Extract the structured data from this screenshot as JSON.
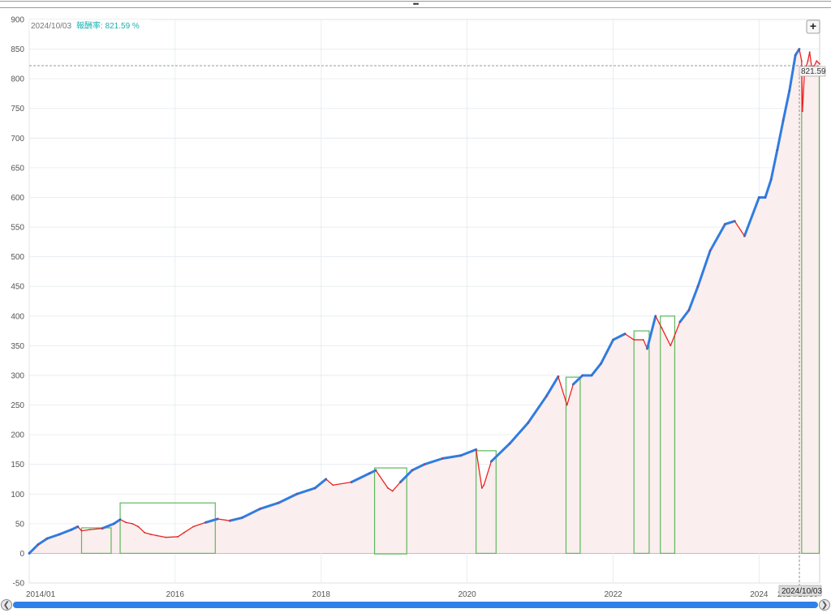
{
  "header": {
    "date": "2024/10/03",
    "return_label": "報酬率: 821.59 %"
  },
  "current_value_label": "821.59",
  "crosshair_date_label": "2024/10/03",
  "x_end_label": "2024/10/30",
  "zoom_button_label": "+",
  "colors": {
    "up_series": "#2f7de0",
    "down_series": "#ee2222",
    "area_fill": "#fbeeee",
    "drawdown_box": "#5cb85c",
    "grid": "#e4e9ee"
  },
  "chart_data": {
    "type": "line",
    "x_axis": {
      "type": "date",
      "ticks": [
        "2014/01",
        "2016",
        "2018",
        "2020",
        "2022",
        "2024"
      ]
    },
    "y_axis": {
      "ticks": [
        -50,
        0,
        50,
        100,
        150,
        200,
        250,
        300,
        350,
        400,
        450,
        500,
        550,
        600,
        650,
        700,
        750,
        800,
        850,
        900
      ],
      "ylim": [
        -50,
        900
      ]
    },
    "reference_line": 821.59,
    "series": [
      {
        "x": [
          "2014-01-01",
          "2014-02-15",
          "2014-04-01",
          "2014-06-01",
          "2014-08-01",
          "2014-09-01",
          "2014-09-20",
          "2014-11-01",
          "2015-01-01",
          "2015-03-01",
          "2015-04-01",
          "2015-05-01",
          "2015-06-01",
          "2015-07-01",
          "2015-08-01",
          "2015-09-01",
          "2015-10-01",
          "2015-11-15",
          "2016-01-15",
          "2016-02-15",
          "2016-04-01",
          "2016-06-01",
          "2016-08-01",
          "2016-10-01",
          "2016-12-01",
          "2017-03-01",
          "2017-06-01",
          "2017-09-01",
          "2017-12-01",
          "2018-01-25",
          "2018-03-01",
          "2018-06-01",
          "2018-09-01",
          "2018-10-01",
          "2018-12-01",
          "2018-12-24",
          "2019-02-01",
          "2019-04-01",
          "2019-06-01",
          "2019-09-01",
          "2019-12-01",
          "2020-02-15",
          "2020-03-15",
          "2020-03-25",
          "2020-05-01",
          "2020-08-01",
          "2020-11-01",
          "2021-02-01",
          "2021-04-01",
          "2021-05-15",
          "2021-06-15",
          "2021-08-01",
          "2021-09-15",
          "2021-11-01",
          "2022-01-01",
          "2022-03-01",
          "2022-04-15",
          "2022-06-01",
          "2022-06-20",
          "2022-08-01",
          "2022-09-01",
          "2022-10-15",
          "2022-12-01",
          "2023-01-15",
          "2023-03-01",
          "2023-05-01",
          "2023-07-15",
          "2023-09-01",
          "2023-10-20",
          "2024-01-01",
          "2024-02-01",
          "2024-03-01",
          "2024-04-01",
          "2024-05-01",
          "2024-06-01",
          "2024-07-01",
          "2024-07-20",
          "2024-08-01",
          "2024-08-05",
          "2024-08-15",
          "2024-09-01",
          "2024-09-10",
          "2024-09-20",
          "2024-10-03",
          "2024-10-15",
          "2024-10-30"
        ],
        "y": [
          0,
          15,
          25,
          32,
          40,
          45,
          38,
          40,
          42,
          50,
          57,
          52,
          50,
          45,
          35,
          32,
          30,
          27,
          28,
          35,
          45,
          52,
          58,
          55,
          60,
          75,
          85,
          100,
          110,
          125,
          115,
          120,
          135,
          140,
          110,
          105,
          120,
          140,
          150,
          160,
          165,
          175,
          110,
          115,
          155,
          185,
          220,
          265,
          298,
          250,
          285,
          300,
          300,
          320,
          360,
          370,
          360,
          360,
          345,
          400,
          380,
          350,
          390,
          410,
          450,
          510,
          555,
          560,
          535,
          600,
          600,
          630,
          680,
          730,
          780,
          840,
          850,
          830,
          745,
          810,
          830,
          845,
          820,
          821.59,
          830,
          825
        ]
      }
    ],
    "drawdown_periods": [
      {
        "start": "2014-09-20",
        "end": "2015-02-15",
        "low": 0,
        "high": 43
      },
      {
        "start": "2015-04-01",
        "end": "2016-07-20",
        "low": 0,
        "high": 85
      },
      {
        "start": "2018-09-25",
        "end": "2019-03-05",
        "low": -1,
        "high": 144
      },
      {
        "start": "2020-02-15",
        "end": "2020-05-25",
        "low": 0,
        "high": 173
      },
      {
        "start": "2021-05-10",
        "end": "2021-07-20",
        "low": 0,
        "high": 297
      },
      {
        "start": "2022-04-15",
        "end": "2022-06-30",
        "low": 0,
        "high": 375
      },
      {
        "start": "2022-08-25",
        "end": "2022-11-05",
        "low": 0,
        "high": 400
      },
      {
        "start": "2024-08-01",
        "end": "2024-10-28",
        "low": 0,
        "high": 820
      }
    ]
  }
}
